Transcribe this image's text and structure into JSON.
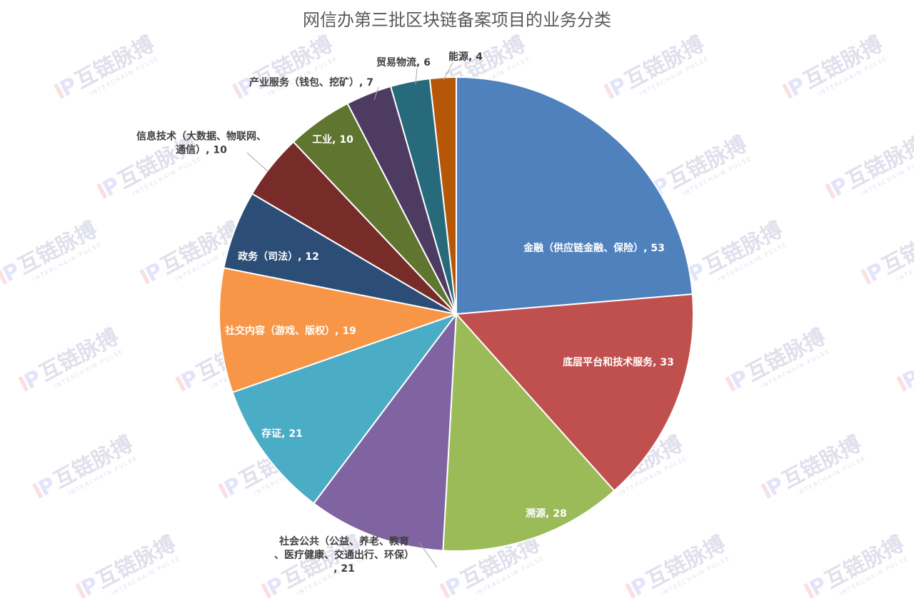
{
  "title": "网信办第三批区块链备案项目的业务分类",
  "watermark": {
    "brand": "互链脉搏",
    "tagline": "INTERCHAIN PULSE",
    "logo_text": "IP"
  },
  "chart_data": {
    "type": "pie",
    "start_angle_deg": 0,
    "direction": "clockwise",
    "slices": [
      {
        "label": "金融（供应链金融、保险）",
        "value": 53,
        "color": "#4f81bd",
        "label_color": "#ffffff"
      },
      {
        "label": "底层平台和技术服务",
        "value": 33,
        "color": "#c0504d",
        "label_color": "#ffffff"
      },
      {
        "label": "溯源",
        "value": 28,
        "color": "#9bbb59",
        "label_color": "#ffffff"
      },
      {
        "label": "社会公共（公益、养老、教育、医疗健康、交通出行、环保）",
        "value": 21,
        "color": "#8064a2",
        "label_color": "#404040"
      },
      {
        "label": "存证",
        "value": 21,
        "color": "#4bacc6",
        "label_color": "#ffffff"
      },
      {
        "label": "社交内容（游戏、版权）",
        "value": 19,
        "color": "#f79646",
        "label_color": "#ffffff"
      },
      {
        "label": "政务（司法）",
        "value": 12,
        "color": "#2c4d75",
        "label_color": "#ffffff"
      },
      {
        "label": "信息技术（大数据、物联网、通信）",
        "value": 10,
        "color": "#772c2a",
        "label_color": "#404040"
      },
      {
        "label": "工业",
        "value": 10,
        "color": "#5f7530",
        "label_color": "#ffffff"
      },
      {
        "label": "产业服务（钱包、挖矿）",
        "value": 7,
        "color": "#4d3b62",
        "label_color": "#404040"
      },
      {
        "label": "贸易物流",
        "value": 6,
        "color": "#276a7c",
        "label_color": "#404040"
      },
      {
        "label": "能源",
        "value": 4,
        "color": "#b65708",
        "label_color": "#404040"
      }
    ]
  }
}
